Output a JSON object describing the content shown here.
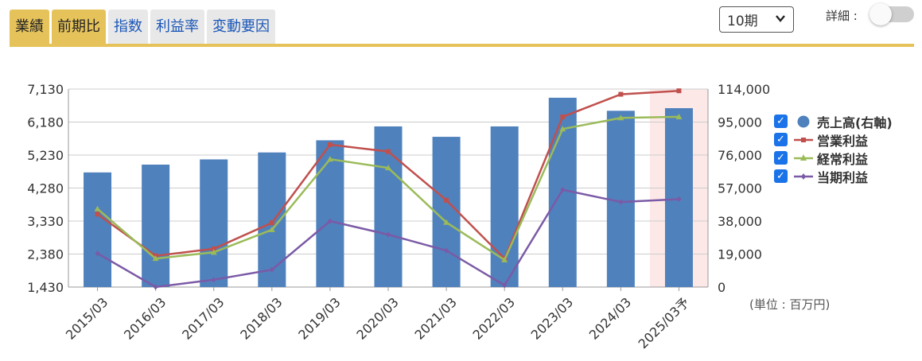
{
  "tabs": [
    {
      "label": "業績",
      "active": true
    },
    {
      "label": "前期比",
      "active": true
    },
    {
      "label": "指数",
      "active": false
    },
    {
      "label": "利益率",
      "active": false
    },
    {
      "label": "変動要因",
      "active": false
    }
  ],
  "period_select": {
    "value": "10期"
  },
  "detail": {
    "label": "詳細 :",
    "enabled": false
  },
  "unit_label": "(単位 : 百万円)",
  "legend": [
    {
      "label": "売上高(右軸)",
      "checked": true
    },
    {
      "label": "営業利益",
      "checked": true
    },
    {
      "label": "経常利益",
      "checked": true
    },
    {
      "label": "当期利益",
      "checked": true
    }
  ],
  "colors": {
    "tab_active": "#e6c35a",
    "bar": "#4f81bd",
    "operating": "#c0504d",
    "ordinary": "#9bbb59",
    "net": "#7b5aa6",
    "forecast_bg": "#fde8e8"
  },
  "chart_data": {
    "type": "bar+line",
    "categories": [
      "2015/03",
      "2016/03",
      "2017/03",
      "2018/03",
      "2019/03",
      "2020/03",
      "2021/03",
      "2022/03",
      "2023/03",
      "2024/03",
      "2025/03予"
    ],
    "forecast_index": 10,
    "left_axis": {
      "ticks": [
        "7,130",
        "6,180",
        "5,230",
        "4,280",
        "3,330",
        "2,380",
        "1,430"
      ],
      "range": [
        1430,
        7130
      ]
    },
    "right_axis": {
      "ticks": [
        "114,000",
        "95,000",
        "76,000",
        "57,000",
        "38,000",
        "19,000",
        "0"
      ],
      "range": [
        0,
        114000
      ]
    },
    "series": [
      {
        "name": "売上高(右軸)",
        "type": "bar",
        "axis": "right",
        "values": [
          66000,
          70500,
          73500,
          77500,
          84500,
          92500,
          86500,
          92500,
          109000,
          101500,
          103000
        ]
      },
      {
        "name": "営業利益",
        "type": "line",
        "axis": "left",
        "values": [
          3530,
          2330,
          2530,
          3280,
          5530,
          5330,
          3930,
          2250,
          6330,
          6980,
          7080
        ]
      },
      {
        "name": "経常利益",
        "type": "line",
        "axis": "left",
        "values": [
          3680,
          2250,
          2430,
          3080,
          5110,
          4860,
          3290,
          2210,
          5980,
          6300,
          6330
        ]
      },
      {
        "name": "当期利益",
        "type": "line",
        "axis": "left",
        "values": [
          2400,
          1430,
          1640,
          1930,
          3330,
          2940,
          2480,
          1480,
          4230,
          3880,
          3960
        ]
      }
    ],
    "grid": true,
    "legend_position": "right"
  }
}
